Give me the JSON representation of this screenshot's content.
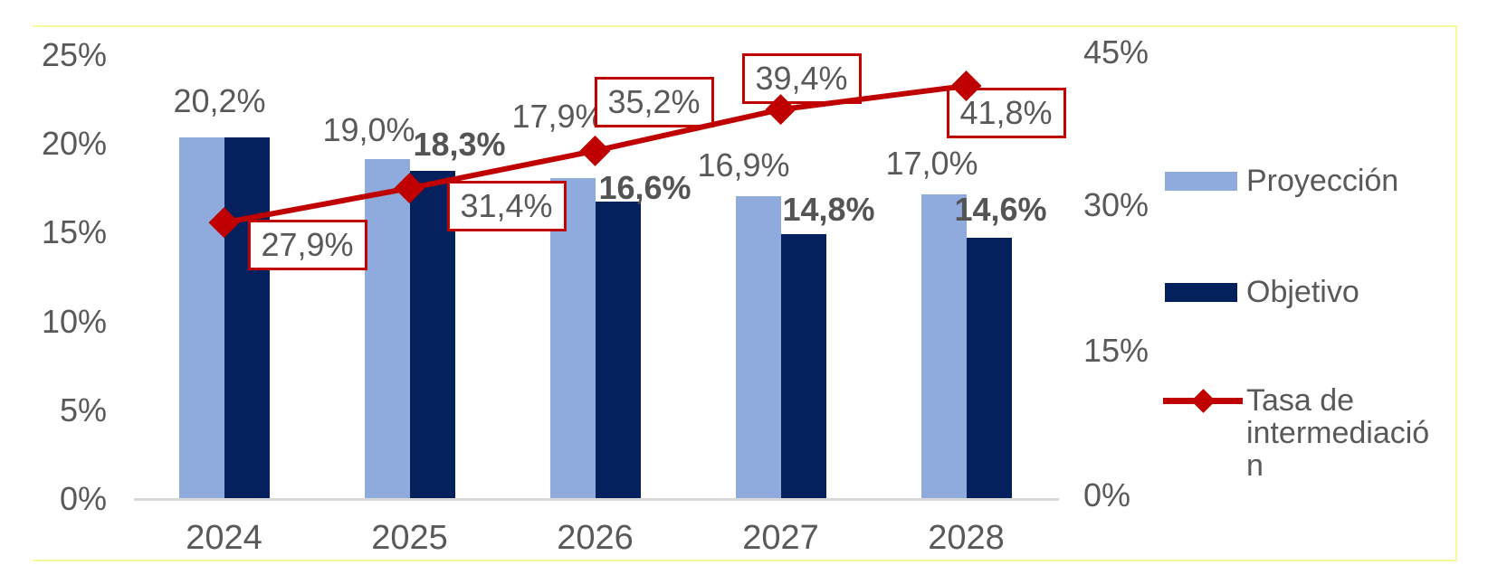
{
  "frame": {
    "border_color": "#F7F79B"
  },
  "colors": {
    "proyeccion": "#8FAADC",
    "objetivo": "#04215E",
    "tasa": "#C00000",
    "tick_text": "#595959",
    "axis_line": "#D9D9D9",
    "label_box_bg": "#FFFFFF"
  },
  "chart_data": {
    "type": "combo",
    "categories": [
      "2024",
      "2025",
      "2026",
      "2027",
      "2028"
    ],
    "series": [
      {
        "name": "Proyección",
        "type": "bar",
        "axis": "left",
        "color": "#8FAADC",
        "values": [
          20.2,
          19.0,
          17.9,
          16.9,
          17.0
        ],
        "data_labels": [
          "20,2%",
          "19,0%",
          "17,9%",
          "16,9%",
          "17,0%"
        ]
      },
      {
        "name": "Objetivo",
        "type": "bar",
        "axis": "left",
        "color": "#04215E",
        "values": [
          20.2,
          18.3,
          16.6,
          14.8,
          14.6
        ],
        "data_labels": [
          null,
          "18,3%",
          "16,6%",
          "14,8%",
          "14,6%"
        ]
      },
      {
        "name": "Tasa de intermediación",
        "type": "line",
        "axis": "right",
        "color": "#C00000",
        "marker": "diamond",
        "values": [
          27.9,
          31.4,
          35.2,
          39.4,
          41.8
        ],
        "data_labels": [
          "27,9%",
          "31,4%",
          "35,2%",
          "39,4%",
          "41,8%"
        ]
      }
    ],
    "left_axis": {
      "min": 0,
      "max": 25,
      "ticks": [
        "25%",
        "20%",
        "15%",
        "10%",
        "5%",
        "0%"
      ]
    },
    "right_axis": {
      "min": 0,
      "max": 45,
      "ticks": [
        "45%",
        "30%",
        "15%",
        "0%"
      ]
    },
    "grid": "off",
    "legend_position": "right"
  },
  "legend": {
    "proyeccion_label": "Proyección",
    "objetivo_label": "Objetivo",
    "tasa_label_lines": [
      "Tasa de",
      "intermediació",
      "n"
    ]
  }
}
